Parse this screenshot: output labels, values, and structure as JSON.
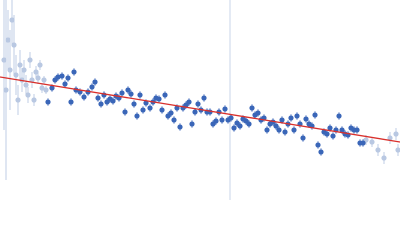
{
  "chart_data": {
    "type": "scatter",
    "xlim": [
      0,
      400
    ],
    "ylim": [
      0,
      200
    ],
    "vline": 230,
    "vline_color": "#c9d5ea",
    "series": [
      {
        "color": "#3a66b8",
        "error": 4,
        "x": [
          48,
          52,
          55,
          58,
          62,
          65,
          68,
          71,
          74,
          76,
          80,
          84,
          88,
          92,
          95,
          98,
          101,
          104,
          107,
          110,
          113,
          116,
          119,
          122,
          125,
          128,
          131,
          134,
          137,
          140,
          143,
          146,
          150,
          153,
          156,
          159,
          162,
          165,
          168,
          171,
          174,
          177,
          180,
          183,
          186,
          189,
          192,
          195,
          198,
          201,
          204,
          207,
          210,
          213,
          216,
          219,
          222,
          225,
          228,
          231,
          234,
          237,
          240,
          243,
          246,
          249,
          252,
          255,
          258,
          261,
          264,
          267,
          270,
          273,
          276,
          279,
          282,
          285,
          288,
          291,
          294,
          297,
          300,
          303,
          306,
          309,
          312,
          315,
          318,
          321,
          324,
          327,
          330,
          333,
          336,
          339,
          342,
          345,
          348,
          351,
          354,
          357,
          360,
          363
        ],
        "values": [
          98,
          112,
          120,
          123,
          124,
          116,
          122,
          98,
          128,
          110,
          108,
          103,
          108,
          113,
          118,
          102,
          96,
          105,
          98,
          101,
          99,
          104,
          102,
          107,
          88,
          110,
          106,
          96,
          84,
          105,
          90,
          97,
          92,
          98,
          102,
          101,
          90,
          105,
          84,
          87,
          80,
          92,
          73,
          92,
          95,
          98,
          76,
          88,
          96,
          90,
          102,
          88,
          88,
          76,
          79,
          88,
          80,
          91,
          80,
          82,
          72,
          77,
          74,
          81,
          79,
          76,
          92,
          85,
          87,
          80,
          82,
          70,
          76,
          78,
          74,
          70,
          80,
          68,
          76,
          82,
          70,
          84,
          76,
          62,
          81,
          76,
          74,
          85,
          55,
          48,
          68,
          66,
          72,
          64,
          70,
          84,
          70,
          66,
          65,
          72,
          70,
          70,
          57,
          57
        ]
      },
      {
        "color": "#b9c8e2",
        "x": [
          4,
          6,
          8,
          10,
          12,
          14,
          16,
          18,
          20,
          22,
          24,
          26,
          28,
          30,
          32,
          34,
          36,
          38,
          40,
          42,
          44,
          46,
          366,
          372,
          378,
          384,
          390,
          396,
          398
        ],
        "values": [
          140,
          110,
          160,
          130,
          180,
          155,
          125,
          100,
          135,
          120,
          130,
          115,
          105,
          140,
          120,
          100,
          128,
          122,
          135,
          112,
          120,
          110,
          60,
          58,
          50,
          42,
          62,
          66,
          50
        ],
        "errors": [
          70,
          90,
          30,
          40,
          25,
          30,
          20,
          15,
          15,
          12,
          10,
          10,
          8,
          8,
          8,
          6,
          6,
          6,
          5,
          5,
          4,
          4,
          5,
          5,
          6,
          6,
          6,
          6,
          6
        ]
      }
    ],
    "fit": {
      "color": "#d9302c",
      "x": [
        0,
        400
      ],
      "values": [
        123,
        58
      ]
    }
  }
}
